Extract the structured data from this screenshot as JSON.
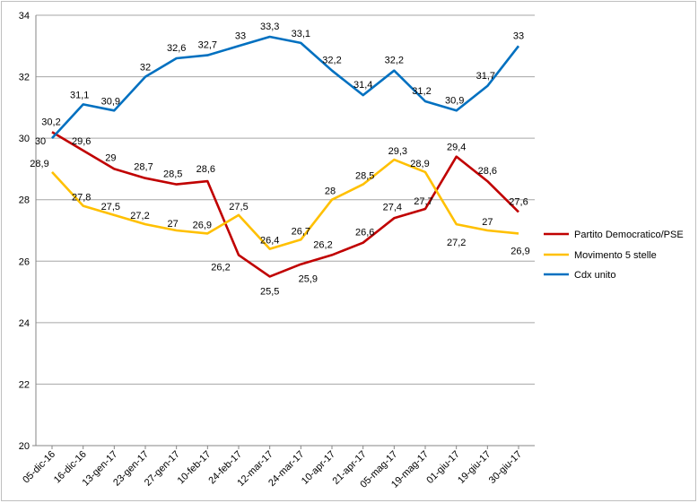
{
  "chart_data": {
    "type": "line",
    "categories": [
      "05-dic-16",
      "16-dic-16",
      "13-gen-17",
      "23-gen-17",
      "27-gen-17",
      "10-feb-17",
      "24-feb-17",
      "12-mar-17",
      "24-mar-17",
      "10-apr-17",
      "21-apr-17",
      "05-mag-17",
      "19-mag-17",
      "01-giu-17",
      "19-giu-17",
      "30-giu-17"
    ],
    "ylim": [
      20,
      34
    ],
    "yticks": [
      "20",
      "22",
      "24",
      "26",
      "28",
      "30",
      "32",
      "34"
    ],
    "grid": true,
    "legend_position": "right",
    "series": [
      {
        "name": "Partito Democratico/PSE",
        "color": "#c00000",
        "values": [
          30.2,
          29.6,
          29,
          28.7,
          28.5,
          28.6,
          26.2,
          25.5,
          25.9,
          26.2,
          26.6,
          27.4,
          27.7,
          29.4,
          28.6,
          27.6
        ],
        "labels": [
          "30,2",
          "29,6",
          "29",
          "28,7",
          "28,5",
          "28,6",
          "26,2",
          "25,5",
          "25,9",
          "26,2",
          "26,6",
          "27,4",
          "27,7",
          "29,4",
          "28,6",
          "27,6"
        ]
      },
      {
        "name": "Movimento 5 stelle",
        "color": "#ffc000",
        "values": [
          28.9,
          27.8,
          27.5,
          27.2,
          27,
          26.9,
          27.5,
          26.4,
          26.7,
          28,
          28.5,
          29.3,
          28.9,
          27.2,
          27,
          26.9
        ],
        "labels": [
          "28,9",
          "27,8",
          "27,5",
          "27,2",
          "27",
          "26,9",
          "27,5",
          "26,4",
          "26,7",
          "28",
          "28,5",
          "29,3",
          "28,9",
          "27,2",
          "27",
          "26,9"
        ]
      },
      {
        "name": "Cdx unito",
        "color": "#0070c0",
        "values": [
          30,
          31.1,
          30.9,
          32,
          32.6,
          32.7,
          33,
          33.3,
          33.1,
          32.2,
          31.4,
          32.2,
          31.2,
          30.9,
          31.7,
          33
        ],
        "labels": [
          "30",
          "31,1",
          "30,9",
          "32",
          "32,6",
          "32,7",
          "33",
          "33,3",
          "33,1",
          "32,2",
          "31,4",
          "32,2",
          "31,2",
          "30,9",
          "31,7",
          "33"
        ]
      }
    ]
  }
}
